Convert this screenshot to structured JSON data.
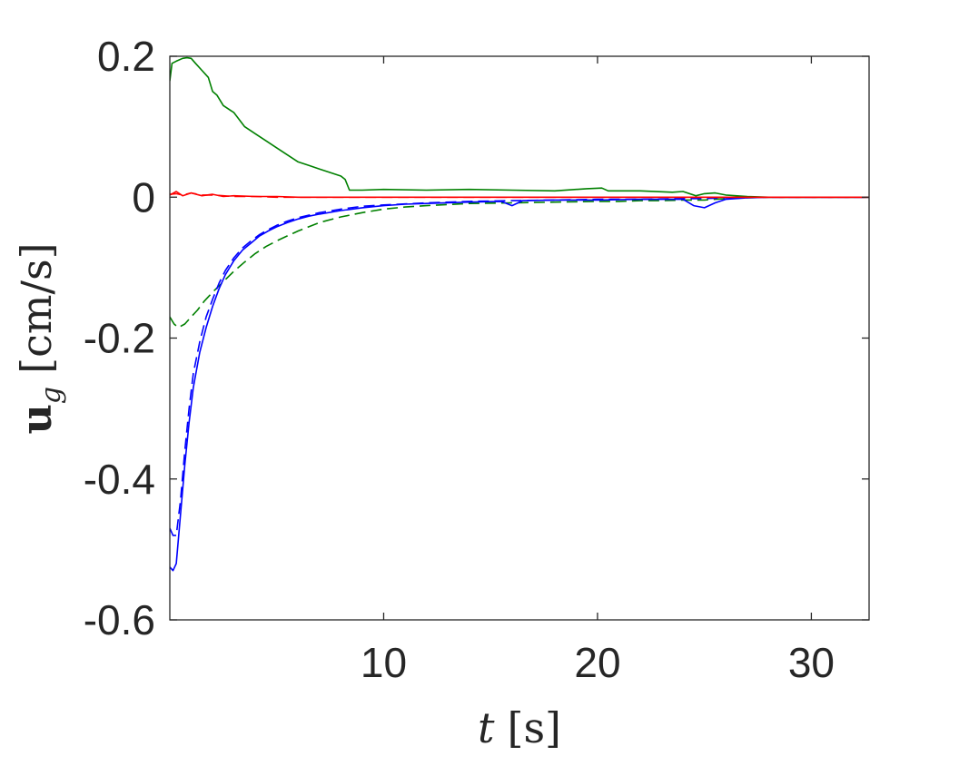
{
  "chart_data": {
    "type": "line",
    "xlabel": {
      "var": "t",
      "unit": "[s]"
    },
    "ylabel": {
      "var": "u",
      "sub": "g",
      "unit": "[cm/s]"
    },
    "xlim": [
      0,
      32.7
    ],
    "ylim": [
      -0.6,
      0.2
    ],
    "xticks": [
      10,
      20,
      30
    ],
    "xtick_labels": [
      "10",
      "20",
      "30"
    ],
    "yticks": [
      0.2,
      0,
      -0.2,
      -0.4,
      -0.6
    ],
    "ytick_labels": [
      "0.2",
      "0",
      "-0.2",
      "-0.4",
      "-0.6"
    ],
    "grid": false,
    "legend": "none",
    "series": [
      {
        "color": "#008000",
        "style": "solid",
        "x": [
          0,
          0.1,
          0.3,
          0.6,
          0.8,
          1.0,
          1.2,
          1.5,
          1.8,
          2.0,
          2.2,
          2.5,
          3.0,
          3.5,
          4.0,
          4.5,
          5.0,
          5.5,
          6.0,
          6.5,
          7.0,
          7.5,
          8.0,
          8.2,
          8.4,
          9.0,
          10,
          12,
          14,
          16,
          18,
          19.5,
          20.2,
          20.5,
          22,
          23.5,
          24,
          24.6,
          25.0,
          25.5,
          26,
          27,
          28,
          30,
          32.7
        ],
        "y": [
          0.165,
          0.19,
          0.193,
          0.197,
          0.198,
          0.197,
          0.19,
          0.18,
          0.17,
          0.15,
          0.145,
          0.13,
          0.12,
          0.1,
          0.09,
          0.08,
          0.07,
          0.06,
          0.05,
          0.045,
          0.04,
          0.035,
          0.03,
          0.025,
          0.01,
          0.01,
          0.011,
          0.01,
          0.011,
          0.01,
          0.009,
          0.012,
          0.013,
          0.009,
          0.009,
          0.007,
          0.008,
          0.002,
          0.005,
          0.006,
          0.003,
          0.001,
          0.0,
          0.0,
          0.0
        ]
      },
      {
        "color": "#008000",
        "style": "dashed",
        "x": [
          0,
          0.2,
          0.4,
          0.7,
          1.0,
          1.3,
          1.6,
          2.0,
          2.5,
          3.0,
          3.5,
          4.0,
          4.5,
          5.0,
          5.5,
          6.0,
          7.0,
          8.0,
          9.0,
          10,
          11,
          12,
          14,
          16,
          18,
          20,
          21,
          22,
          23,
          24,
          25,
          26,
          27,
          28,
          30,
          32.7
        ],
        "y": [
          -0.17,
          -0.18,
          -0.185,
          -0.18,
          -0.17,
          -0.16,
          -0.148,
          -0.135,
          -0.12,
          -0.105,
          -0.092,
          -0.08,
          -0.07,
          -0.062,
          -0.055,
          -0.048,
          -0.036,
          -0.028,
          -0.022,
          -0.017,
          -0.014,
          -0.012,
          -0.009,
          -0.008,
          -0.007,
          -0.006,
          -0.006,
          -0.005,
          -0.005,
          -0.004,
          -0.004,
          -0.002,
          -0.001,
          0.0,
          0.0,
          0.0
        ]
      },
      {
        "color": "#0000ff",
        "style": "solid",
        "x": [
          0,
          0.15,
          0.3,
          0.5,
          0.7,
          0.9,
          1.1,
          1.4,
          1.7,
          2.0,
          2.3,
          2.6,
          3.0,
          3.4,
          3.8,
          4.2,
          4.6,
          5.0,
          5.5,
          6.0,
          6.5,
          7.0,
          8.0,
          9.0,
          10,
          11,
          12,
          14,
          15.5,
          16,
          16.5,
          18,
          20,
          22,
          24,
          24.5,
          25,
          25.5,
          26,
          27,
          28,
          30,
          32.7
        ],
        "y": [
          -0.525,
          -0.53,
          -0.52,
          -0.45,
          -0.38,
          -0.32,
          -0.27,
          -0.22,
          -0.185,
          -0.155,
          -0.13,
          -0.11,
          -0.09,
          -0.075,
          -0.065,
          -0.055,
          -0.048,
          -0.042,
          -0.036,
          -0.031,
          -0.027,
          -0.024,
          -0.019,
          -0.015,
          -0.012,
          -0.01,
          -0.009,
          -0.007,
          -0.006,
          -0.012,
          -0.005,
          -0.004,
          -0.004,
          -0.003,
          -0.003,
          -0.012,
          -0.015,
          -0.008,
          -0.003,
          -0.001,
          0.0,
          0.0,
          0.0
        ]
      },
      {
        "color": "#0000ff",
        "style": "dashed",
        "x": [
          0,
          0.15,
          0.3,
          0.5,
          0.7,
          0.9,
          1.1,
          1.4,
          1.7,
          2.0,
          2.3,
          2.6,
          3.0,
          3.4,
          3.8,
          4.2,
          4.6,
          5.0,
          5.5,
          6.0,
          7.0,
          8.0,
          9.0,
          10,
          12,
          14,
          16,
          18,
          20,
          22,
          24,
          25,
          26,
          27,
          28,
          30,
          32.7
        ],
        "y": [
          -0.47,
          -0.48,
          -0.48,
          -0.43,
          -0.36,
          -0.3,
          -0.25,
          -0.205,
          -0.17,
          -0.145,
          -0.122,
          -0.104,
          -0.086,
          -0.072,
          -0.062,
          -0.053,
          -0.046,
          -0.04,
          -0.034,
          -0.029,
          -0.022,
          -0.017,
          -0.013,
          -0.011,
          -0.008,
          -0.006,
          -0.005,
          -0.004,
          -0.003,
          -0.003,
          -0.002,
          -0.002,
          -0.001,
          0.0,
          0.0,
          0.0,
          0.0
        ]
      },
      {
        "color": "#ff0000",
        "style": "solid",
        "x": [
          0,
          0.3,
          0.6,
          1.0,
          1.5,
          2.0,
          2.5,
          3.0,
          4.0,
          5.0,
          6.0,
          8.0,
          10,
          15,
          20,
          25,
          26,
          30,
          32.7
        ],
        "y": [
          0.003,
          0.008,
          0.002,
          0.006,
          0.002,
          0.004,
          0.001,
          0.002,
          0.001,
          0.001,
          0.0,
          0.0,
          0.0,
          0.0,
          0.0,
          0.0,
          0.0,
          0.0,
          0.0
        ]
      },
      {
        "color": "#ff0000",
        "style": "dashed",
        "x": [
          0,
          0.3,
          0.6,
          1.0,
          1.5,
          2.0,
          2.5,
          3.0,
          4.0,
          5.0,
          6.0,
          8.0,
          10,
          15,
          20,
          25,
          26,
          30,
          32.7
        ],
        "y": [
          0.004,
          0.005,
          0.003,
          0.006,
          0.003,
          0.003,
          0.002,
          0.001,
          0.001,
          0.0,
          0.0,
          0.0,
          0.0,
          0.0,
          0.0,
          0.0,
          0.0,
          0.0,
          0.0
        ]
      }
    ]
  }
}
